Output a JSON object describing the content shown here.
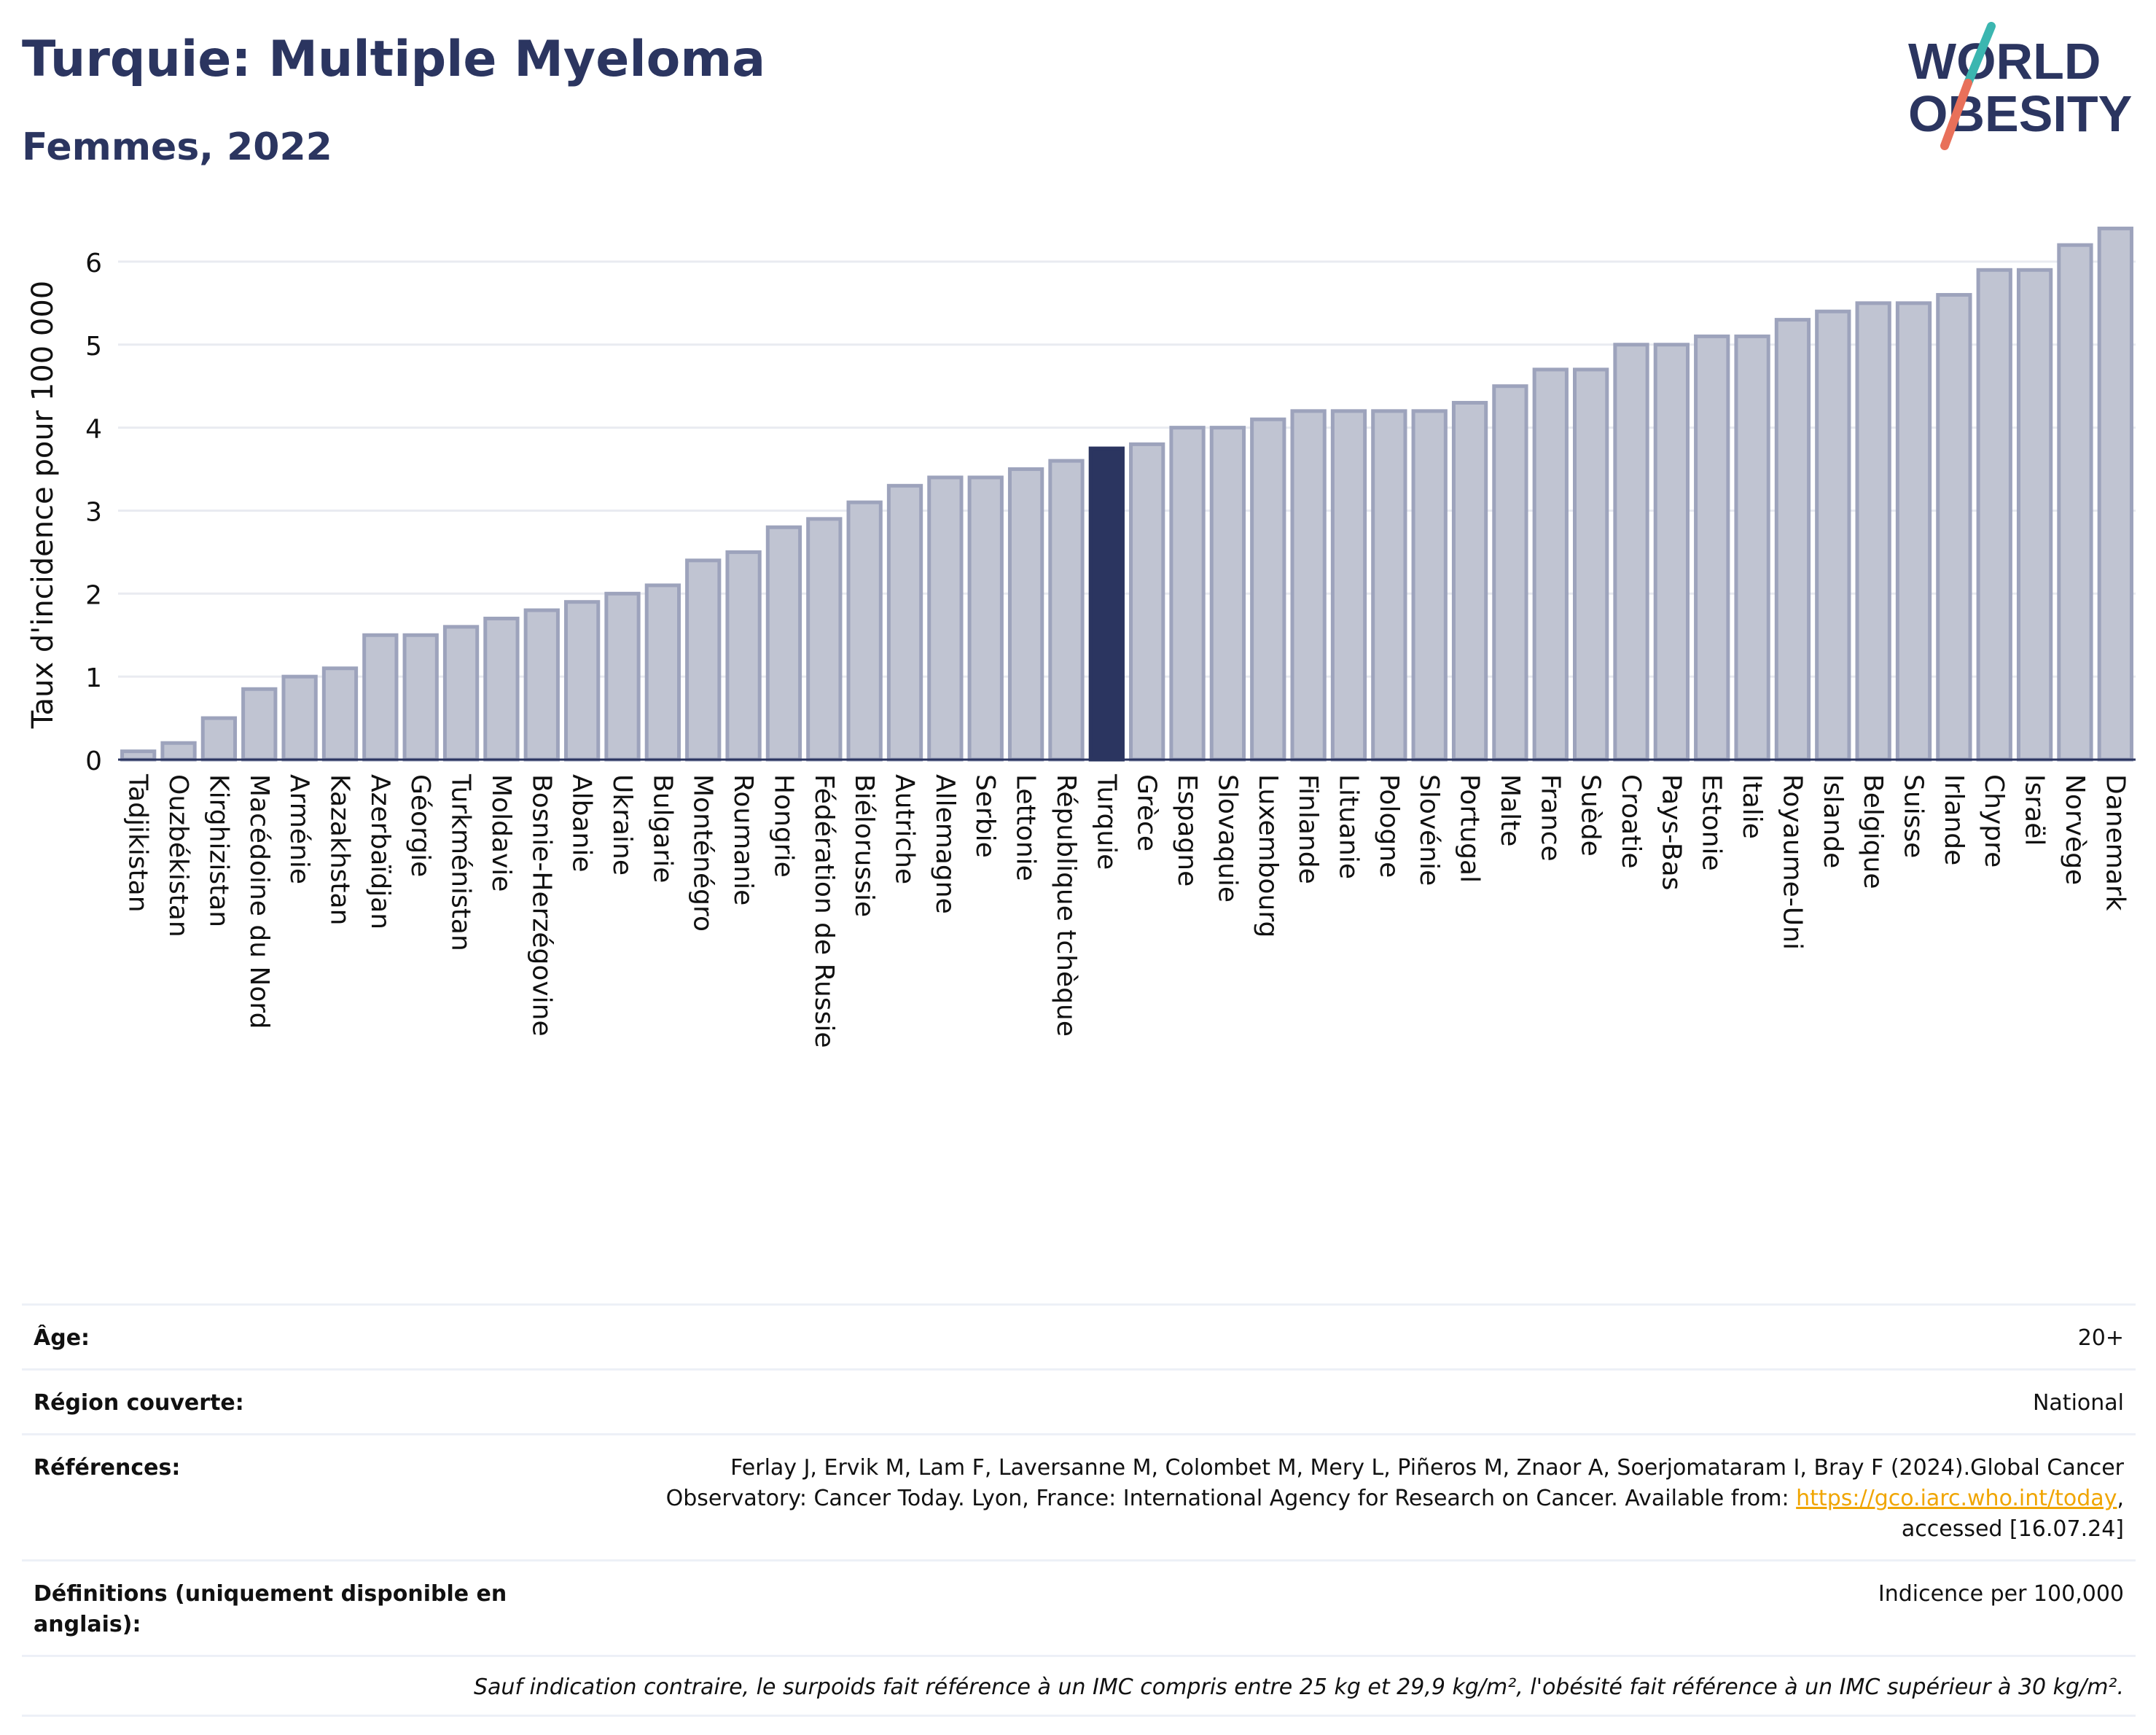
{
  "header": {
    "title": "Turquie: Multiple Myeloma",
    "subtitle": "Femmes, 2022",
    "logo_line1": "WORLD",
    "logo_line2": "OBESITY"
  },
  "colors": {
    "bar": "#c0c4d2",
    "bar_outline": "#9da3bc",
    "highlight": "#2b3560",
    "text": "#2b3560",
    "logo_teal": "#3bb6b0",
    "logo_coral": "#e8705a"
  },
  "chart_data": {
    "type": "bar",
    "title": "Turquie: Multiple Myeloma",
    "subtitle": "Femmes, 2022",
    "ylabel": "Taux d'incidence pour 100 000",
    "ylim": [
      0,
      6.5
    ],
    "yticks": [
      0,
      1,
      2,
      3,
      4,
      5,
      6
    ],
    "grid": true,
    "highlight": "Turquie",
    "categories": [
      "Tadjikistan",
      "Ouzbékistan",
      "Kirghizistan",
      "Macédoine du Nord",
      "Arménie",
      "Kazakhstan",
      "Azerbaïdjan",
      "Géorgie",
      "Turkménistan",
      "Moldavie",
      "Bosnie-Herzégovine",
      "Albanie",
      "Ukraine",
      "Bulgarie",
      "Monténégro",
      "Roumanie",
      "Hongrie",
      "Fédération de Russie",
      "Biélorussie",
      "Autriche",
      "Allemagne",
      "Serbie",
      "Lettonie",
      "République tchèque",
      "Turquie",
      "Grèce",
      "Espagne",
      "Slovaquie",
      "Luxembourg",
      "Finlande",
      "Lituanie",
      "Pologne",
      "Slovénie",
      "Portugal",
      "Malte",
      "France",
      "Suède",
      "Croatie",
      "Pays-Bas",
      "Estonie",
      "Italie",
      "Royaume-Uni",
      "Islande",
      "Belgique",
      "Suisse",
      "Irlande",
      "Chypre",
      "Israël",
      "Norvège",
      "Danemark"
    ],
    "values": [
      0.1,
      0.2,
      0.5,
      0.85,
      1.0,
      1.1,
      1.5,
      1.5,
      1.6,
      1.7,
      1.8,
      1.9,
      2.0,
      2.1,
      2.4,
      2.5,
      2.8,
      2.9,
      3.1,
      3.3,
      3.4,
      3.4,
      3.5,
      3.6,
      3.75,
      3.8,
      4.0,
      4.0,
      4.1,
      4.2,
      4.2,
      4.2,
      4.2,
      4.3,
      4.5,
      4.7,
      4.7,
      5.0,
      5.0,
      5.1,
      5.1,
      5.3,
      5.4,
      5.5,
      5.5,
      5.6,
      5.9,
      5.9,
      6.2,
      6.4
    ]
  },
  "info": {
    "age_label": "Âge:",
    "age_value": "20+",
    "region_label": "Région couverte:",
    "region_value": "National",
    "references_label": "Références:",
    "references_line1": "Ferlay J, Ervik M, Lam F, Laversanne M, Colombet M, Mery L, Piñeros M, Znaor A, Soerjomataram I, Bray F (2024).Global Cancer",
    "references_line2": "Observatory: Cancer Today. Lyon, France: International Agency for Research on Cancer. Available from:",
    "references_link": "https://gco.iarc.who.int/today",
    "references_line3": "accessed [16.07.24]",
    "definitions_label": "Définitions (uniquement disponible en anglais):",
    "definitions_value": "Indicence per 100,000",
    "note": "Sauf indication contraire, le surpoids fait référence à un IMC compris entre 25 kg et 29,9 kg/m², l'obésité fait référence à un IMC supérieur à 30 kg/m²."
  }
}
